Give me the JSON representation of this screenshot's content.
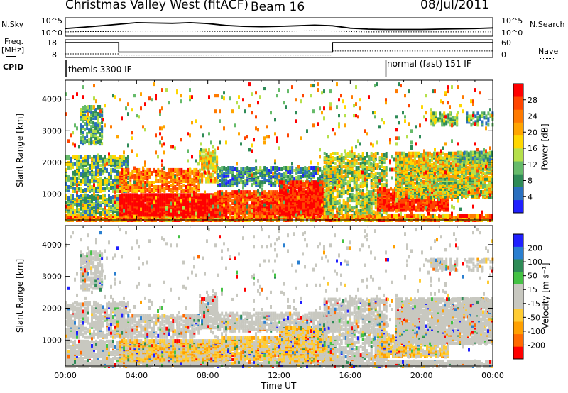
{
  "header": {
    "station": "Christmas Valley West (fitACF)",
    "beam": "Beam 16",
    "date": "08/Jul/2011"
  },
  "left_labels": {
    "nsky": "N.Sky",
    "freq_a": "Freq.",
    "freq_b": "[MHz]",
    "cpid": "CPID"
  },
  "right_labels": {
    "nsearch": "N.Search",
    "nave": "Nave"
  },
  "cpid_labels": [
    "themis 3300 IF",
    "normal (fast) 151 IF"
  ],
  "colors": {
    "power_scale": [
      "#2020ff",
      "#2a6fbf",
      "#2e8b57",
      "#66bb6a",
      "#b5e04a",
      "#ffd700",
      "#ffa500",
      "#ff7a00",
      "#ff4500",
      "#ff0000"
    ],
    "velocity_scale": [
      "#ff0000",
      "#ff6a00",
      "#ffa000",
      "#ffcc33",
      "#c8c8c0",
      "#c8c8c0",
      "#44c244",
      "#2e8b57",
      "#2a7fd0",
      "#2020ff"
    ]
  },
  "chart_data": [
    {
      "type": "line",
      "name": "noise-panel",
      "y_ticks": [
        "10^5",
        "10^0"
      ],
      "y_ticks_right": [
        "10^5",
        "10^0"
      ],
      "x": [
        "00:00",
        "01:00",
        "02:00",
        "03:00",
        "04:00",
        "05:00",
        "06:00",
        "07:00",
        "08:00",
        "09:00",
        "10:00",
        "11:00",
        "12:00",
        "13:00",
        "14:00",
        "15:00",
        "16:00",
        "17:00",
        "18:00",
        "19:00",
        "20:00",
        "21:00",
        "22:00",
        "23:00",
        "24:00"
      ],
      "series": [
        {
          "name": "N.Sky",
          "values": [
            2.5,
            2.9,
            3.4,
            3.9,
            4.4,
            4.3,
            4.2,
            4.4,
            4.1,
            3.5,
            3.2,
            3.1,
            3.2,
            3.4,
            3.6,
            3.4,
            2.6,
            2.3,
            2.2,
            2.2,
            2.2,
            2.3,
            2.4,
            2.5,
            2.7
          ]
        },
        {
          "name": "N.Search",
          "values": [
            1.4,
            1.5,
            1.5,
            1.6,
            1.7,
            1.7,
            1.7,
            1.7,
            1.6,
            1.6,
            1.6,
            1.6,
            1.6,
            1.7,
            1.8,
            1.7,
            1.5,
            1.4,
            1.4,
            1.4,
            1.4,
            1.4,
            1.4,
            1.4,
            1.4
          ]
        }
      ],
      "ylim": [
        0,
        6
      ]
    },
    {
      "type": "line",
      "name": "freq-panel",
      "y_ticks": [
        "18",
        "8"
      ],
      "y_ticks_right": [
        "60",
        "0"
      ],
      "segments": [
        {
          "t0": 0,
          "t1": 3,
          "freq": 16.4,
          "nave": 12
        },
        {
          "t0": 3,
          "t1": 15,
          "freq": 11.0,
          "nave": 8
        },
        {
          "t0": 15,
          "t1": 24,
          "freq": 16.4,
          "nave": 22
        }
      ],
      "ylim": [
        8,
        18
      ],
      "ylim_right": [
        0,
        60
      ],
      "cpid_switch_hours": [
        0,
        18
      ]
    },
    {
      "type": "heatmap",
      "name": "power",
      "ylabel": "Slant Range [km]",
      "y_ticks": [
        1000,
        2000,
        3000,
        4000
      ],
      "ylim": [
        180,
        4600
      ],
      "xlim": [
        0,
        24
      ],
      "colorbar": {
        "label": "Power [dB]",
        "ticks": [
          4,
          8,
          12,
          16,
          20,
          24,
          28
        ],
        "range": [
          0,
          32
        ]
      }
    },
    {
      "type": "heatmap",
      "name": "velocity",
      "ylabel": "Slant Range [km]",
      "y_ticks": [
        1000,
        2000,
        3000,
        4000
      ],
      "ylim": [
        180,
        4600
      ],
      "xlim": [
        0,
        24
      ],
      "xlabel": "Time UT",
      "x_ticks": [
        "00:00",
        "04:00",
        "08:00",
        "12:00",
        "16:00",
        "20:00",
        "00:00"
      ],
      "colorbar": {
        "label": "Velocity [m s⁻¹]",
        "ticks": [
          "-200",
          "-100",
          "-50",
          "-15",
          "15",
          "50",
          "100",
          "200"
        ]
      }
    }
  ]
}
